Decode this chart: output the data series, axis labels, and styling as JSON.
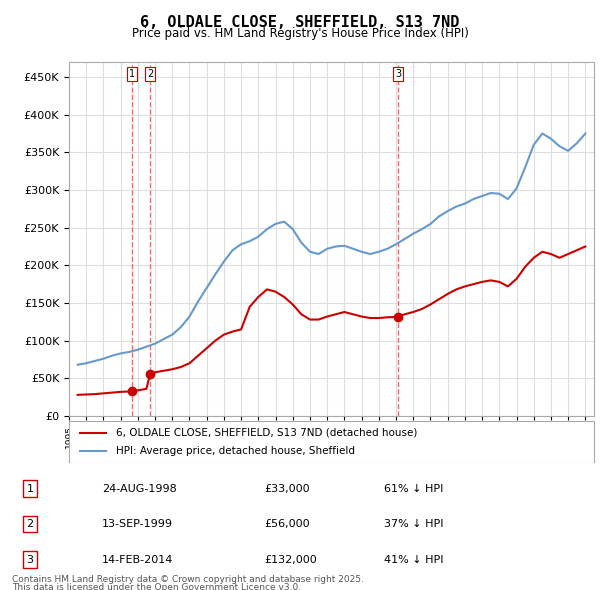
{
  "title": "6, OLDALE CLOSE, SHEFFIELD, S13 7ND",
  "subtitle": "Price paid vs. HM Land Registry's House Price Index (HPI)",
  "legend_line1": "6, OLDALE CLOSE, SHEFFIELD, S13 7ND (detached house)",
  "legend_line2": "HPI: Average price, detached house, Sheffield",
  "footer1": "Contains HM Land Registry data © Crown copyright and database right 2025.",
  "footer2": "This data is licensed under the Open Government Licence v3.0.",
  "transactions": [
    {
      "num": 1,
      "date": "24-AUG-1998",
      "price": 33000,
      "pct": "61% ↓ HPI",
      "year": 1998.65
    },
    {
      "num": 2,
      "date": "13-SEP-1999",
      "price": 56000,
      "pct": "37% ↓ HPI",
      "year": 1999.71
    },
    {
      "num": 3,
      "date": "14-FEB-2014",
      "price": 132000,
      "pct": "41% ↓ HPI",
      "year": 2014.12
    }
  ],
  "price_color": "#cc0000",
  "hpi_color": "#6699cc",
  "vline_color": "#ff6666",
  "marker_color": "#cc0000",
  "bg_color": "#ffffff",
  "grid_color": "#dddddd",
  "ylim": [
    0,
    470000
  ],
  "xlim_start": 1995.0,
  "xlim_end": 2025.5,
  "hpi_data": {
    "years": [
      1995.5,
      1996.0,
      1996.5,
      1997.0,
      1997.5,
      1998.0,
      1998.5,
      1999.0,
      1999.5,
      2000.0,
      2000.5,
      2001.0,
      2001.5,
      2002.0,
      2002.5,
      2003.0,
      2003.5,
      2004.0,
      2004.5,
      2005.0,
      2005.5,
      2006.0,
      2006.5,
      2007.0,
      2007.5,
      2008.0,
      2008.5,
      2009.0,
      2009.5,
      2010.0,
      2010.5,
      2011.0,
      2011.5,
      2012.0,
      2012.5,
      2013.0,
      2013.5,
      2014.0,
      2014.5,
      2015.0,
      2015.5,
      2016.0,
      2016.5,
      2017.0,
      2017.5,
      2018.0,
      2018.5,
      2019.0,
      2019.5,
      2020.0,
      2020.5,
      2021.0,
      2021.5,
      2022.0,
      2022.5,
      2023.0,
      2023.5,
      2024.0,
      2024.5,
      2025.0
    ],
    "values": [
      68000,
      70000,
      73000,
      76000,
      80000,
      83000,
      85000,
      88000,
      92000,
      96000,
      102000,
      108000,
      118000,
      132000,
      152000,
      170000,
      188000,
      205000,
      220000,
      228000,
      232000,
      238000,
      248000,
      255000,
      258000,
      248000,
      230000,
      218000,
      215000,
      222000,
      225000,
      226000,
      222000,
      218000,
      215000,
      218000,
      222000,
      228000,
      235000,
      242000,
      248000,
      255000,
      265000,
      272000,
      278000,
      282000,
      288000,
      292000,
      296000,
      295000,
      288000,
      302000,
      330000,
      360000,
      375000,
      368000,
      358000,
      352000,
      362000,
      375000
    ]
  },
  "price_data": {
    "years": [
      1995.5,
      1996.0,
      1996.5,
      1997.0,
      1997.5,
      1998.0,
      1998.5,
      1998.65,
      1999.0,
      1999.5,
      1999.71,
      2000.0,
      2000.5,
      2001.0,
      2001.5,
      2002.0,
      2002.5,
      2003.0,
      2003.5,
      2004.0,
      2004.5,
      2005.0,
      2005.5,
      2006.0,
      2006.5,
      2007.0,
      2007.5,
      2008.0,
      2008.5,
      2009.0,
      2009.5,
      2010.0,
      2010.5,
      2011.0,
      2011.5,
      2012.0,
      2012.5,
      2013.0,
      2013.5,
      2014.0,
      2014.12,
      2014.5,
      2015.0,
      2015.5,
      2016.0,
      2016.5,
      2017.0,
      2017.5,
      2018.0,
      2018.5,
      2019.0,
      2019.5,
      2020.0,
      2020.5,
      2021.0,
      2021.5,
      2022.0,
      2022.5,
      2023.0,
      2023.5,
      2024.0,
      2024.5,
      2025.0
    ],
    "values": [
      28000,
      28500,
      29000,
      30000,
      31000,
      32000,
      32500,
      33000,
      34000,
      36000,
      56000,
      58000,
      60000,
      62000,
      65000,
      70000,
      80000,
      90000,
      100000,
      108000,
      112000,
      115000,
      145000,
      158000,
      168000,
      165000,
      158000,
      148000,
      135000,
      128000,
      128000,
      132000,
      135000,
      138000,
      135000,
      132000,
      130000,
      130000,
      131000,
      131500,
      132000,
      135000,
      138000,
      142000,
      148000,
      155000,
      162000,
      168000,
      172000,
      175000,
      178000,
      180000,
      178000,
      172000,
      182000,
      198000,
      210000,
      218000,
      215000,
      210000,
      215000,
      220000,
      225000
    ]
  }
}
